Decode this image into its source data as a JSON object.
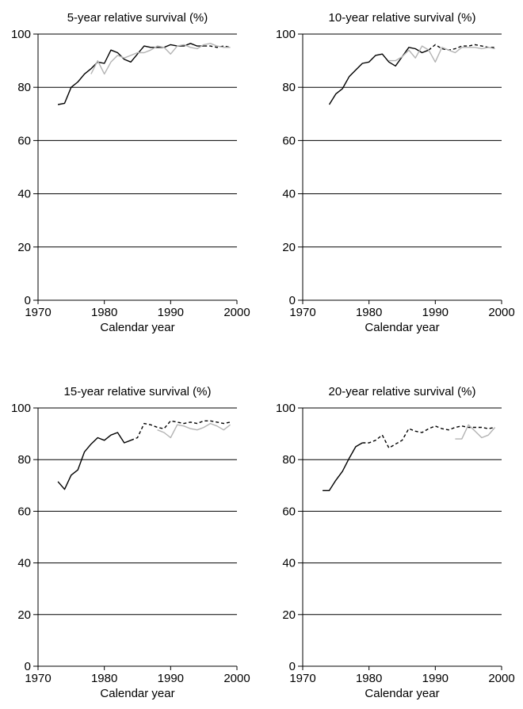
{
  "chart_data": [
    {
      "type": "line",
      "title": "5-year relative survival (%)",
      "xlabel": "Calendar year",
      "ylabel": "",
      "xlim": [
        1970,
        2000
      ],
      "ylim": [
        0,
        100
      ],
      "xticks": [
        1970,
        1980,
        1990,
        2000
      ],
      "yticks": [
        0,
        20,
        40,
        60,
        80,
        100
      ],
      "grid": "horizontal",
      "series": [
        {
          "style": "solid",
          "color": "#000000",
          "x": [
            1973,
            1974,
            1975,
            1976,
            1977,
            1978,
            1979,
            1980,
            1981,
            1982,
            1983,
            1984,
            1985,
            1986,
            1987,
            1988,
            1989,
            1990,
            1991,
            1992,
            1993,
            1994,
            1995
          ],
          "y": [
            73.5,
            74,
            80,
            82,
            85,
            87,
            89.5,
            89,
            94,
            93,
            90.5,
            89.5,
            92.5,
            95.5,
            95,
            95,
            95,
            96,
            95.5,
            95.5,
            96.5,
            95.5,
            95.5
          ]
        },
        {
          "style": "dashed",
          "color": "#000000",
          "x": [
            1995,
            1996,
            1997,
            1998,
            1999
          ],
          "y": [
            95.5,
            95.5,
            95,
            95.5,
            95
          ]
        },
        {
          "style": "solid",
          "color": "#b3b3b3",
          "x": [
            1978,
            1979,
            1980,
            1981,
            1982,
            1983,
            1984,
            1985,
            1986,
            1987,
            1988,
            1989,
            1990,
            1991,
            1992,
            1993,
            1994,
            1995,
            1996,
            1997,
            1998,
            1999
          ],
          "y": [
            85,
            90,
            85,
            89.5,
            92,
            91,
            92,
            93,
            93,
            94,
            95.5,
            95,
            92.5,
            95.5,
            96,
            95,
            94.5,
            96,
            96.5,
            95.5,
            95,
            95
          ]
        }
      ]
    },
    {
      "type": "line",
      "title": "10-year relative survival (%)",
      "xlabel": "Calendar year",
      "ylabel": "",
      "xlim": [
        1970,
        2000
      ],
      "ylim": [
        0,
        100
      ],
      "xticks": [
        1970,
        1980,
        1990,
        2000
      ],
      "yticks": [
        0,
        20,
        40,
        60,
        80,
        100
      ],
      "grid": "horizontal",
      "series": [
        {
          "style": "solid",
          "color": "#000000",
          "x": [
            1974,
            1975,
            1976,
            1977,
            1978,
            1979,
            1980,
            1981,
            1982,
            1983,
            1984,
            1985,
            1986,
            1987,
            1988,
            1989
          ],
          "y": [
            73.5,
            77.5,
            79.5,
            84,
            86.5,
            89,
            89.5,
            92,
            92.5,
            89.5,
            88,
            91.5,
            95,
            94.5,
            93,
            94
          ]
        },
        {
          "style": "dashed",
          "color": "#000000",
          "x": [
            1989,
            1990,
            1991,
            1992,
            1993,
            1994,
            1995,
            1996,
            1997,
            1998,
            1999
          ],
          "y": [
            94,
            96,
            94.5,
            94,
            94.5,
            95.5,
            95.5,
            96,
            95.5,
            95,
            95
          ]
        },
        {
          "style": "solid",
          "color": "#b3b3b3",
          "x": [
            1983,
            1984,
            1985,
            1986,
            1987,
            1988,
            1989,
            1990,
            1991,
            1992,
            1993,
            1994,
            1995,
            1996,
            1997,
            1998,
            1999
          ],
          "y": [
            90,
            90,
            91.5,
            94,
            91,
            95.5,
            94,
            89.5,
            95,
            94,
            93,
            95,
            95,
            95,
            94.5,
            95,
            94.5
          ]
        }
      ]
    },
    {
      "type": "line",
      "title": "15-year relative survival (%)",
      "xlabel": "Calendar year",
      "ylabel": "",
      "xlim": [
        1970,
        2000
      ],
      "ylim": [
        0,
        100
      ],
      "xticks": [
        1970,
        1980,
        1990,
        2000
      ],
      "yticks": [
        0,
        20,
        40,
        60,
        80,
        100
      ],
      "grid": "horizontal",
      "series": [
        {
          "style": "solid",
          "color": "#000000",
          "x": [
            1973,
            1974,
            1975,
            1976,
            1977,
            1978,
            1979,
            1980,
            1981,
            1982,
            1983,
            1984
          ],
          "y": [
            71.5,
            68.5,
            74,
            76,
            83,
            86,
            88.5,
            87.5,
            89.5,
            90.5,
            86.5,
            87.5
          ]
        },
        {
          "style": "dashed",
          "color": "#000000",
          "x": [
            1984,
            1985,
            1986,
            1987,
            1988,
            1989,
            1990,
            1991,
            1992,
            1993,
            1994,
            1995,
            1996,
            1997,
            1998,
            1999
          ],
          "y": [
            87.5,
            88.5,
            94,
            93.5,
            92.5,
            92,
            95,
            94.5,
            94,
            94.5,
            94,
            95,
            95,
            94.5,
            94,
            94.5
          ]
        },
        {
          "style": "solid",
          "color": "#b3b3b3",
          "x": [
            1988,
            1989,
            1990,
            1991,
            1992,
            1993,
            1994,
            1995,
            1996,
            1997,
            1998,
            1999
          ],
          "y": [
            91.5,
            90.5,
            88.5,
            93.5,
            93,
            92,
            91.5,
            92.5,
            94,
            93,
            91.5,
            93.5
          ]
        }
      ]
    },
    {
      "type": "line",
      "title": "20-year relative survival (%)",
      "xlabel": "Calendar year",
      "ylabel": "",
      "xlim": [
        1970,
        2000
      ],
      "ylim": [
        0,
        100
      ],
      "xticks": [
        1970,
        1980,
        1990,
        2000
      ],
      "yticks": [
        0,
        20,
        40,
        60,
        80,
        100
      ],
      "grid": "horizontal",
      "series": [
        {
          "style": "solid",
          "color": "#000000",
          "x": [
            1973,
            1974,
            1975,
            1976,
            1977,
            1978,
            1979
          ],
          "y": [
            68,
            68,
            72,
            75.5,
            80.5,
            85,
            86.5
          ]
        },
        {
          "style": "dashed",
          "color": "#000000",
          "x": [
            1979,
            1980,
            1981,
            1982,
            1983,
            1984,
            1985,
            1986,
            1987,
            1988,
            1989,
            1990,
            1991,
            1992,
            1993,
            1994,
            1995,
            1996,
            1997,
            1998,
            1999
          ],
          "y": [
            86.5,
            86.5,
            87.5,
            89.5,
            84.5,
            86,
            87.5,
            92,
            91,
            90.5,
            92,
            93,
            92,
            91.5,
            92.5,
            93,
            92.5,
            92.5,
            92.5,
            92,
            92.5
          ]
        },
        {
          "style": "solid",
          "color": "#b3b3b3",
          "x": [
            1993,
            1994,
            1995,
            1996,
            1997,
            1998,
            1999
          ],
          "y": [
            88,
            88,
            93.5,
            91,
            88.5,
            89.5,
            92.5
          ]
        }
      ]
    }
  ]
}
